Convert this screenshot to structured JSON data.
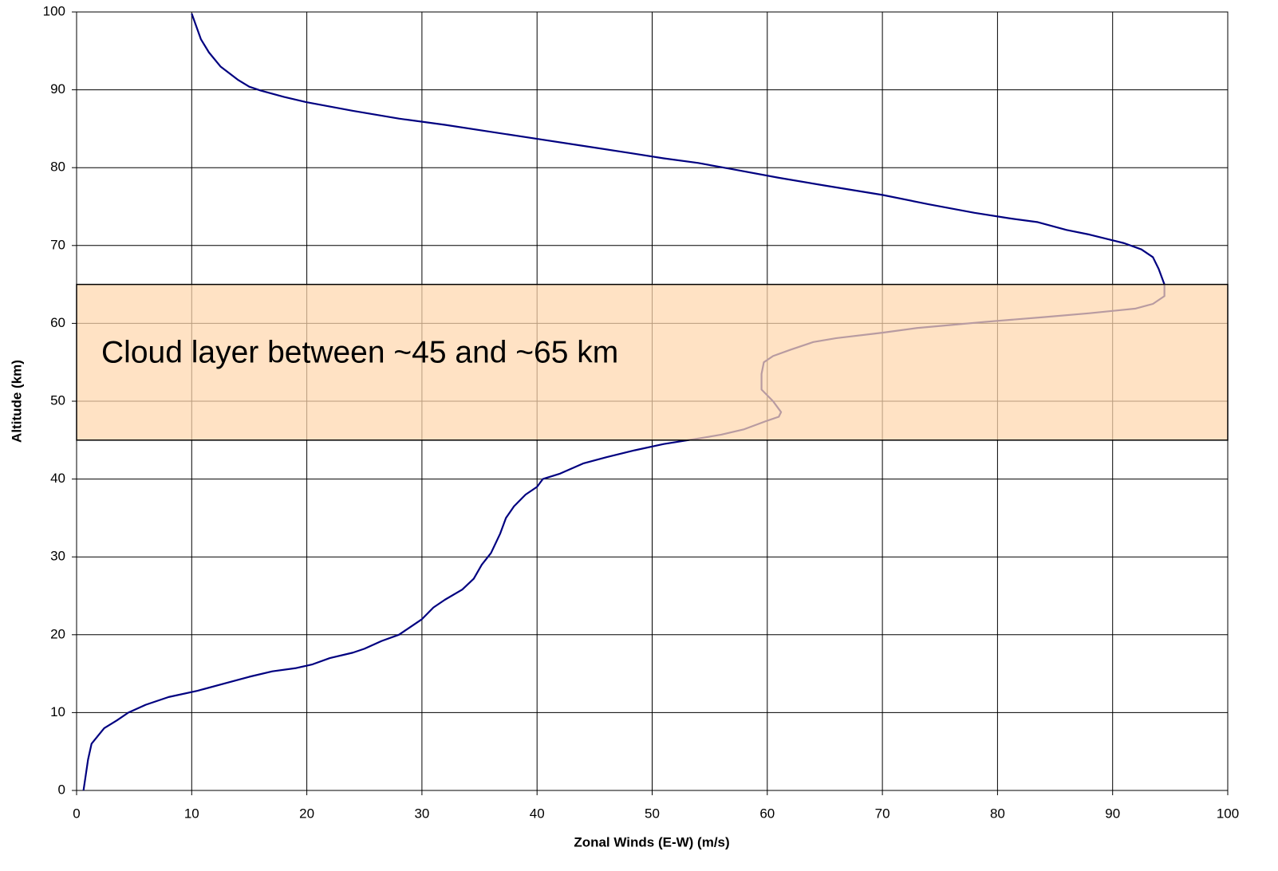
{
  "chart_data": {
    "type": "line",
    "x_label": "Zonal Winds (E-W) (m/s)",
    "y_label": "Altitude (km)",
    "x": [
      0.6,
      0.8,
      1,
      1.3,
      2.4,
      3.5,
      4.5,
      6,
      8,
      10.5,
      13,
      15,
      17,
      19,
      20.5,
      22,
      24,
      25,
      26.5,
      28,
      29,
      30,
      31,
      32,
      33.5,
      34.5,
      35.2,
      36,
      36.8,
      37.3,
      38,
      39,
      40,
      40.5,
      42,
      44,
      46,
      48.5,
      51,
      54,
      56,
      58,
      60,
      61,
      61.2,
      60.5,
      59.5,
      59.5,
      59.7,
      60.5,
      62,
      64,
      66,
      70,
      73,
      76,
      79,
      84,
      88,
      92,
      93.5,
      94.5,
      94.5,
      94,
      93.5,
      92.5,
      91,
      88,
      86,
      83.5,
      81,
      78,
      74,
      70,
      65,
      61,
      57,
      54,
      51,
      48,
      44,
      40,
      36,
      32,
      28,
      24,
      20,
      18,
      16,
      15,
      14,
      12.5,
      11.5,
      10.8,
      10
    ],
    "series": [
      {
        "color": "#000080",
        "values": [
          0,
          2,
          4,
          6,
          8,
          9,
          10,
          11,
          12,
          12.8,
          13.8,
          14.6,
          15.3,
          15.7,
          16.2,
          17,
          17.7,
          18.2,
          19.2,
          20,
          21,
          22,
          23.5,
          24.5,
          25.8,
          27.2,
          29,
          30.5,
          33,
          35,
          36.5,
          38,
          39,
          40,
          40.7,
          42,
          42.8,
          43.7,
          44.5,
          45.2,
          45.7,
          46.4,
          47.5,
          48,
          48.6,
          50,
          51.5,
          53.5,
          55,
          55.8,
          56.6,
          57.6,
          58.1,
          58.8,
          59.4,
          59.8,
          60.2,
          60.8,
          61.3,
          61.9,
          62.5,
          63.5,
          65,
          67,
          68.5,
          69.5,
          70.3,
          71.4,
          72,
          73,
          73.5,
          74.2,
          75.3,
          76.5,
          77.7,
          78.7,
          79.8,
          80.6,
          81.2,
          81.9,
          82.8,
          83.7,
          84.6,
          85.5,
          86.3,
          87.3,
          88.4,
          89.1,
          89.9,
          90.4,
          91.3,
          93,
          94.8,
          96.5,
          99.8
        ]
      }
    ],
    "xlim": [
      0,
      100
    ],
    "xticks": [
      0,
      10,
      20,
      30,
      40,
      50,
      60,
      70,
      80,
      90,
      100
    ],
    "ylim": [
      0,
      100
    ],
    "yticks": [
      0,
      10,
      20,
      30,
      40,
      50,
      60,
      70,
      80,
      90,
      100
    ],
    "grid": true,
    "shaded_band": {
      "ylim": [
        45,
        65
      ],
      "label": "Cloud layer between ~45 and ~65 km",
      "color": "#ffd7ad"
    }
  }
}
